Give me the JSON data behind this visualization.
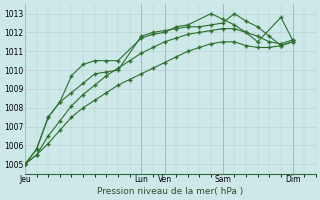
{
  "background_color": "#cce8e8",
  "grid_color_minor": "#bbcccc",
  "grid_color_major": "#99aabb",
  "line_color": "#2d6e2d",
  "title": "Pression niveau de la mer( hPa )",
  "ylim": [
    1004.5,
    1013.5
  ],
  "yticks": [
    1005,
    1006,
    1007,
    1008,
    1009,
    1010,
    1011,
    1012,
    1013
  ],
  "day_labels": [
    "Jeu",
    "Lun",
    "Ven",
    "Sam",
    "Dim"
  ],
  "day_x": [
    0.0,
    5.0,
    6.0,
    8.5,
    11.5
  ],
  "xlim": [
    0.0,
    12.5
  ],
  "series": [
    {
      "x": [
        0.0,
        0.5,
        1.0,
        1.5,
        2.0,
        2.5,
        3.0,
        3.5,
        4.0,
        4.5,
        5.0,
        5.5,
        6.0,
        6.5,
        7.0,
        7.5,
        8.0,
        8.5,
        9.0,
        9.5,
        10.0,
        10.5,
        11.0,
        11.5
      ],
      "y": [
        1005.0,
        1005.5,
        1006.1,
        1006.8,
        1007.5,
        1008.0,
        1008.4,
        1008.8,
        1009.2,
        1009.5,
        1009.8,
        1010.1,
        1010.4,
        1010.7,
        1011.0,
        1011.2,
        1011.4,
        1011.5,
        1011.5,
        1011.3,
        1011.2,
        1011.2,
        1011.3,
        1011.5
      ]
    },
    {
      "x": [
        0.0,
        0.5,
        1.0,
        1.5,
        2.0,
        2.5,
        3.0,
        3.5,
        4.0,
        4.5,
        5.0,
        5.5,
        6.0,
        6.5,
        7.0,
        7.5,
        8.0,
        8.5,
        9.0,
        9.5,
        10.0,
        10.5,
        11.0,
        11.5
      ],
      "y": [
        1005.0,
        1005.5,
        1006.5,
        1007.3,
        1008.1,
        1008.7,
        1009.2,
        1009.7,
        1010.1,
        1010.5,
        1010.9,
        1011.2,
        1011.5,
        1011.7,
        1011.9,
        1012.0,
        1012.1,
        1012.2,
        1012.2,
        1012.0,
        1011.8,
        1011.5,
        1011.4,
        1011.6
      ]
    },
    {
      "x": [
        0.0,
        0.5,
        1.0,
        1.5,
        2.0,
        2.5,
        3.0,
        3.5,
        4.0,
        5.0,
        5.5,
        6.0,
        6.5,
        7.0,
        7.5,
        8.0,
        8.5,
        9.0,
        9.5,
        10.0,
        10.5,
        11.0,
        11.5
      ],
      "y": [
        1005.0,
        1005.8,
        1007.5,
        1008.3,
        1008.8,
        1009.3,
        1009.8,
        1009.9,
        1010.0,
        1011.8,
        1012.0,
        1012.1,
        1012.2,
        1012.3,
        1012.3,
        1012.4,
        1012.5,
        1013.0,
        1012.6,
        1012.3,
        1011.8,
        1011.3,
        1011.5
      ]
    },
    {
      "x": [
        0.0,
        0.5,
        1.0,
        1.5,
        2.0,
        2.5,
        3.0,
        3.5,
        4.0,
        5.0,
        5.5,
        6.0,
        6.5,
        7.0,
        8.0,
        8.5,
        9.0,
        9.5,
        10.0,
        11.0,
        11.5
      ],
      "y": [
        1005.0,
        1005.8,
        1007.5,
        1008.3,
        1009.7,
        1010.3,
        1010.5,
        1010.5,
        1010.5,
        1011.7,
        1011.9,
        1012.0,
        1012.3,
        1012.4,
        1013.0,
        1012.7,
        1012.4,
        1012.0,
        1011.5,
        1012.8,
        1011.6
      ]
    }
  ]
}
